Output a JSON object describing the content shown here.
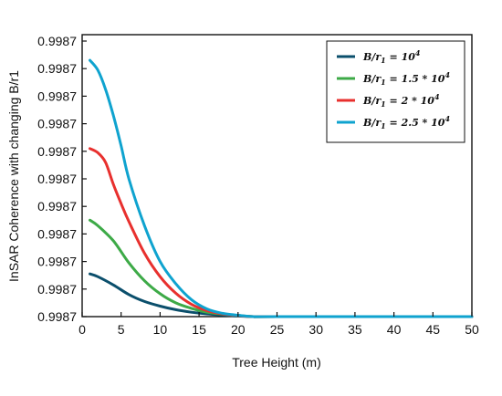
{
  "chart_data": {
    "type": "line",
    "xlabel": "Tree Height (m)",
    "ylabel": "InSAR Coherence with changing B/r1",
    "x_ticks": [
      0,
      5,
      10,
      15,
      20,
      25,
      30,
      35,
      40,
      45,
      50
    ],
    "y_tick_labels": [
      "0.9987",
      "0.9987",
      "0.9987",
      "0.9987",
      "0.9987",
      "0.9987",
      "0.9987",
      "0.9987",
      "0.9987",
      "0.9987",
      "0.9987"
    ],
    "xlim": [
      0,
      50
    ],
    "ylim": [
      0,
      10
    ],
    "y_scale_note": "",
    "grid": false,
    "legend_position": "top-right",
    "series": [
      {
        "name": "B/r₁ = 10⁴",
        "color": "#0b4f6c",
        "x": [
          1,
          2,
          4,
          6,
          8,
          10,
          12,
          14,
          16,
          18,
          20,
          22,
          25,
          50
        ],
        "y": [
          1.55,
          1.45,
          1.15,
          0.8,
          0.55,
          0.38,
          0.25,
          0.16,
          0.1,
          0.06,
          0.02,
          0.0,
          0.0,
          0.0
        ]
      },
      {
        "name": "B/r₁ = 1.5 * 10⁴",
        "color": "#3daa47",
        "x": [
          1,
          2,
          4,
          6,
          8,
          10,
          12,
          14,
          16,
          18,
          20,
          22,
          25,
          50
        ],
        "y": [
          3.5,
          3.3,
          2.75,
          1.95,
          1.3,
          0.83,
          0.5,
          0.3,
          0.16,
          0.09,
          0.04,
          0.0,
          0.0,
          0.0
        ]
      },
      {
        "name": "B/r₁ = 2 * 10⁴",
        "color": "#e8302e",
        "x": [
          1,
          2,
          3,
          4,
          5,
          6,
          8,
          10,
          12,
          14,
          16,
          18,
          20,
          22,
          25,
          50
        ],
        "y": [
          6.1,
          5.95,
          5.6,
          4.8,
          4.1,
          3.45,
          2.3,
          1.45,
          0.85,
          0.45,
          0.22,
          0.1,
          0.04,
          0.0,
          0.0,
          0.0
        ]
      },
      {
        "name": "B/r₁ = 2.5 * 10⁴",
        "color": "#0fa3cf",
        "x": [
          1,
          2,
          3,
          4,
          5,
          6,
          8,
          10,
          12,
          14,
          16,
          18,
          20,
          22,
          25,
          50
        ],
        "y": [
          9.3,
          8.95,
          8.25,
          7.3,
          6.2,
          5.0,
          3.3,
          2.0,
          1.2,
          0.62,
          0.28,
          0.12,
          0.05,
          0.0,
          0.0,
          0.0
        ]
      }
    ]
  },
  "legend": [
    {
      "prefix": "B/r",
      "sub": "1",
      "mid": " = ",
      "coef": "",
      "base": "10",
      "exp": "4"
    },
    {
      "prefix": "B/r",
      "sub": "1",
      "mid": " = ",
      "coef": "1.5 * ",
      "base": "10",
      "exp": "4"
    },
    {
      "prefix": "B/r",
      "sub": "1",
      "mid": " = ",
      "coef": "2 * ",
      "base": "10",
      "exp": "4"
    },
    {
      "prefix": "B/r",
      "sub": "1",
      "mid": " = ",
      "coef": "2.5 * ",
      "base": "10",
      "exp": "4"
    }
  ]
}
